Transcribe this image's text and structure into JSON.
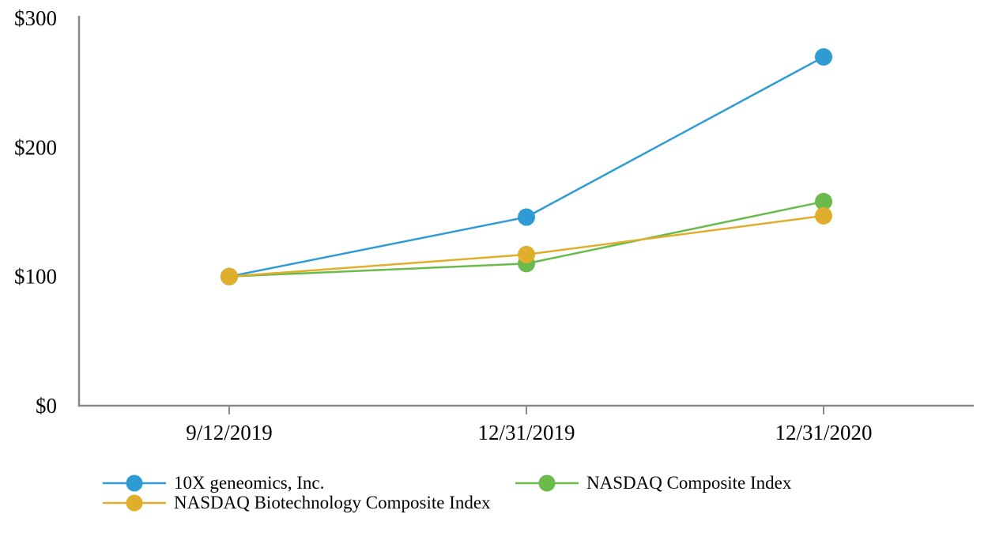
{
  "chart_data": {
    "type": "line",
    "categories": [
      "9/12/2019",
      "12/31/2019",
      "12/31/2020"
    ],
    "series": [
      {
        "name": "10X geneomics, Inc.",
        "color": "#2E9BD5",
        "values": [
          100,
          146,
          270
        ]
      },
      {
        "name": "NASDAQ Biotechnology Composite Index",
        "color": "#DFAE2C",
        "values": [
          100,
          117,
          147
        ]
      },
      {
        "name": "NASDAQ Composite Index",
        "color": "#6ABB4C",
        "values": [
          100,
          110,
          158
        ]
      }
    ],
    "y_ticks": [
      {
        "value": 0,
        "label": "$0"
      },
      {
        "value": 100,
        "label": "$100"
      },
      {
        "value": 200,
        "label": "$200"
      },
      {
        "value": 300,
        "label": "$300"
      }
    ],
    "ylim": [
      0,
      300
    ],
    "title": "",
    "xlabel": "",
    "ylabel": "",
    "grid": false,
    "legend_position": "bottom",
    "axis_color": "#898989",
    "text_color": "#000000"
  }
}
